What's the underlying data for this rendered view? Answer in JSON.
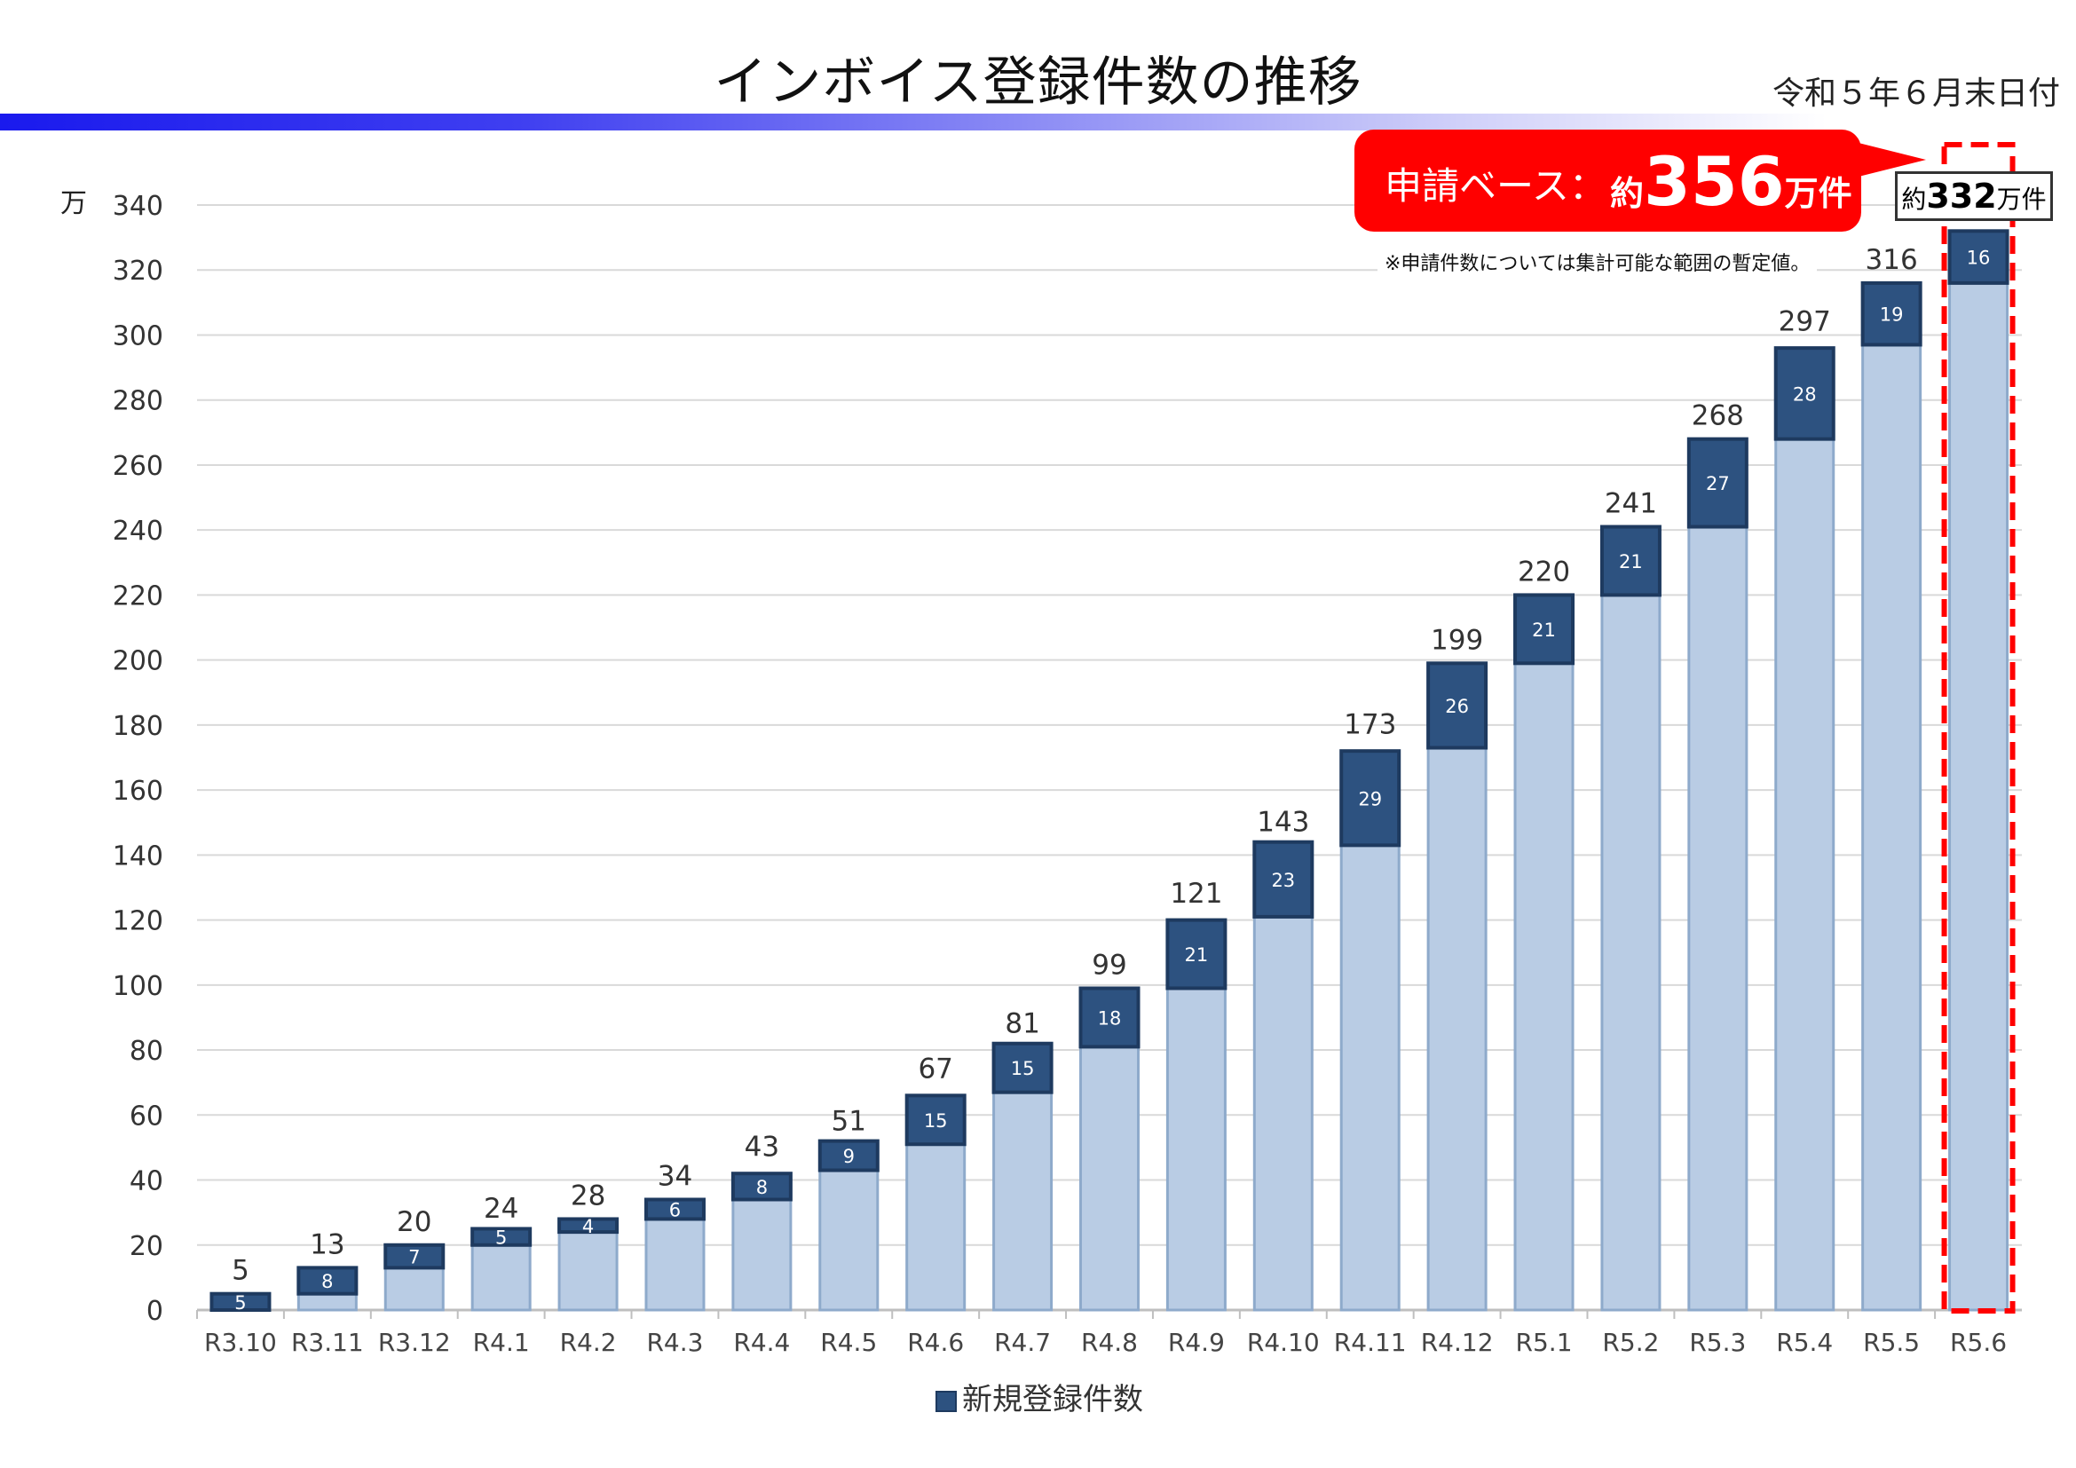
{
  "title": "インボイス登録件数の推移",
  "as_of_date": "令和５年６月末日付",
  "y_unit_label": "万",
  "callout": {
    "label": "申請ベース：",
    "value_prefix": "約",
    "value_number": "356",
    "value_unit": "万件",
    "note": "※申請件数については集計可能な範囲の暫定値。"
  },
  "latest_box": {
    "prefix": "約",
    "number": "332",
    "unit": "万件"
  },
  "legend_label": "新規登録件数",
  "colors": {
    "base_fill": "#b9cce4",
    "base_edge": "#8eaacb",
    "new_fill": "#2d5280",
    "new_edge": "#1e3a5f",
    "highlight": "#ff0000",
    "grid": "#d9d9d9"
  },
  "chart_data": {
    "type": "bar",
    "stacked": true,
    "categories": [
      "R3.10",
      "R3.11",
      "R3.12",
      "R4.1",
      "R4.2",
      "R4.3",
      "R4.4",
      "R4.5",
      "R4.6",
      "R4.7",
      "R4.8",
      "R4.9",
      "R4.10",
      "R4.11",
      "R4.12",
      "R5.1",
      "R5.2",
      "R5.3",
      "R5.4",
      "R5.5",
      "R5.6"
    ],
    "totals": [
      5,
      13,
      20,
      24,
      28,
      34,
      43,
      51,
      67,
      81,
      99,
      121,
      143,
      173,
      199,
      220,
      241,
      268,
      297,
      316,
      332
    ],
    "total_labels": [
      "5",
      "13",
      "20",
      "24",
      "28",
      "34",
      "43",
      "51",
      "67",
      "81",
      "99",
      "121",
      "143",
      "173",
      "199",
      "220",
      "241",
      "268",
      "297",
      "316",
      ""
    ],
    "series": [
      {
        "values": [
          0,
          5,
          13,
          20,
          24,
          28,
          34,
          43,
          51,
          67,
          81,
          99,
          121,
          143,
          173,
          199,
          220,
          241,
          268,
          297,
          316
        ]
      },
      {
        "name": "新規登録件数",
        "values": [
          5,
          8,
          7,
          5,
          4,
          6,
          8,
          9,
          15,
          15,
          18,
          21,
          23,
          29,
          26,
          21,
          21,
          27,
          28,
          19,
          16
        ]
      }
    ],
    "yticks": [
      0,
      20,
      40,
      60,
      80,
      100,
      120,
      140,
      160,
      180,
      200,
      220,
      240,
      260,
      280,
      300,
      320,
      340
    ],
    "ylim": [
      0,
      340
    ],
    "grid": true,
    "legend_position": "bottom",
    "highlighted_category": "R5.6"
  }
}
